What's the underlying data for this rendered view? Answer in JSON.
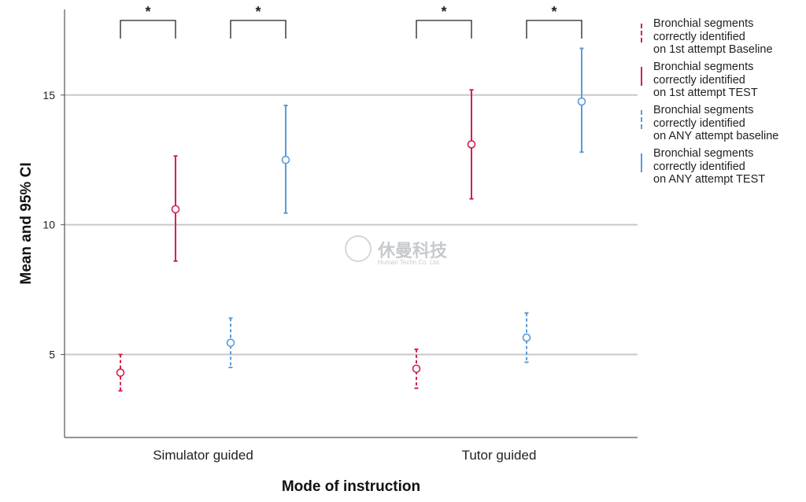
{
  "chart_data": {
    "type": "errorbar",
    "title": "",
    "xlabel": "Mode of instruction",
    "ylabel": "Mean and 95% CI",
    "ylim": [
      1.8,
      18.3
    ],
    "yticks": [
      5,
      10,
      15
    ],
    "ytick_labels": [
      "5",
      "10",
      "15"
    ],
    "grid": "horizontal",
    "legend_position": "right",
    "categories": [
      "Simulator guided",
      "Tutor guided"
    ],
    "series": [
      {
        "name": "Bronchial segments correctly identified on 1st attempt Baseline",
        "color": "#d6204e",
        "dash": true,
        "mean": [
          4.3,
          4.45
        ],
        "lower": [
          3.6,
          3.7
        ],
        "upper": [
          5.0,
          5.2
        ]
      },
      {
        "name": "Bronchial segments correctly identified on 1st attempt TEST",
        "color": "#d6204e",
        "dash": false,
        "mean": [
          10.6,
          13.1
        ],
        "lower": [
          8.6,
          11.0
        ],
        "upper": [
          12.65,
          15.2
        ]
      },
      {
        "name": "Bronchial segments correctly identified on ANY attempt baseline",
        "color": "#5b9bd8",
        "dash": true,
        "mean": [
          5.45,
          5.65
        ],
        "lower": [
          4.5,
          4.7
        ],
        "upper": [
          6.4,
          6.6
        ]
      },
      {
        "name": "Bronchial segments correctly identified on ANY attempt TEST",
        "color": "#5b9bd8",
        "dash": false,
        "mean": [
          12.5,
          14.75
        ],
        "lower": [
          10.45,
          12.8
        ],
        "upper": [
          14.6,
          16.8
        ]
      }
    ],
    "significance": [
      {
        "category": "Simulator guided",
        "between": [
          0,
          1
        ],
        "label": "*"
      },
      {
        "category": "Simulator guided",
        "between": [
          2,
          3
        ],
        "label": "*"
      },
      {
        "category": "Tutor guided",
        "between": [
          0,
          1
        ],
        "label": "*"
      },
      {
        "category": "Tutor guided",
        "between": [
          2,
          3
        ],
        "label": "*"
      }
    ]
  },
  "legend": {
    "items": [
      {
        "label": "Bronchial segments\ncorrectly identified\non 1st attempt Baseline",
        "color": "#d6204e",
        "style": "dashed"
      },
      {
        "label": "Bronchial segments\ncorrectly identified\non 1st attempt TEST",
        "color": "#d6204e",
        "style": "solid"
      },
      {
        "label": "Bronchial segments\ncorrectly identified\non ANY attempt baseline",
        "color": "#5b9bd8",
        "style": "dashed"
      },
      {
        "label": "Bronchial segments\ncorrectly identified\non ANY attempt TEST",
        "color": "#5b9bd8",
        "style": "solid"
      }
    ]
  },
  "watermark": {
    "text_cn": "休曼科技",
    "text_en": "Human Techn Co. Ltd."
  }
}
